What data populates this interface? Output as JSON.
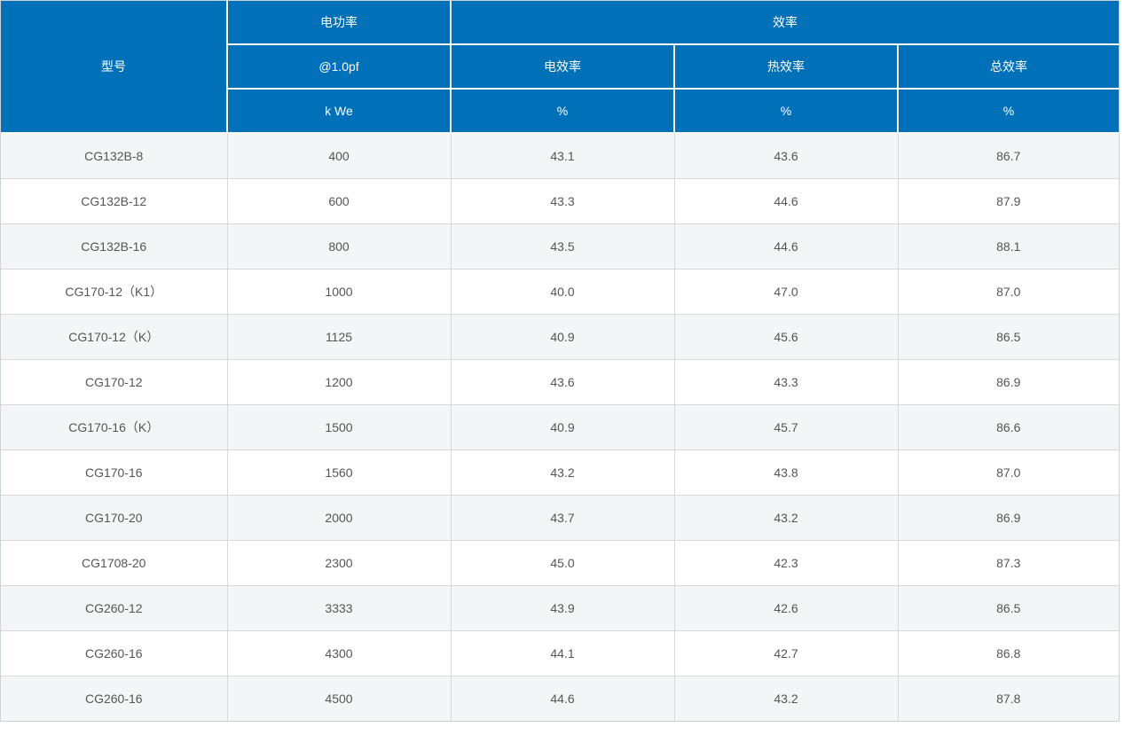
{
  "table": {
    "header": {
      "model": "型号",
      "power_group": "电功率",
      "power_sub": "@1.0pf",
      "power_unit": "k We",
      "efficiency_group": "效率",
      "elec_eff": "电效率",
      "thermal_eff": "热效率",
      "total_eff": "总效率",
      "unit_percent": "%"
    },
    "rows": [
      {
        "model": "CG132B-8",
        "power": "400",
        "elec": "43.1",
        "thermal": "43.6",
        "total": "86.7"
      },
      {
        "model": "CG132B-12",
        "power": "600",
        "elec": "43.3",
        "thermal": "44.6",
        "total": "87.9"
      },
      {
        "model": "CG132B-16",
        "power": "800",
        "elec": "43.5",
        "thermal": "44.6",
        "total": "88.1"
      },
      {
        "model": "CG170-12（K1）",
        "power": "1000",
        "elec": "40.0",
        "thermal": "47.0",
        "total": "87.0"
      },
      {
        "model": "CG170-12（K）",
        "power": "1125",
        "elec": "40.9",
        "thermal": "45.6",
        "total": "86.5"
      },
      {
        "model": "CG170-12",
        "power": "1200",
        "elec": "43.6",
        "thermal": "43.3",
        "total": "86.9"
      },
      {
        "model": "CG170-16（K）",
        "power": "1500",
        "elec": "40.9",
        "thermal": "45.7",
        "total": "86.6"
      },
      {
        "model": "CG170-16",
        "power": "1560",
        "elec": "43.2",
        "thermal": "43.8",
        "total": "87.0"
      },
      {
        "model": "CG170-20",
        "power": "2000",
        "elec": "43.7",
        "thermal": "43.2",
        "total": "86.9"
      },
      {
        "model": "CG1708-20",
        "power": "2300",
        "elec": "45.0",
        "thermal": "42.3",
        "total": "87.3"
      },
      {
        "model": "CG260-12",
        "power": "3333",
        "elec": "43.9",
        "thermal": "42.6",
        "total": "86.5"
      },
      {
        "model": "CG260-16",
        "power": "4300",
        "elec": "44.1",
        "thermal": "42.7",
        "total": "86.8"
      },
      {
        "model": "CG260-16",
        "power": "4500",
        "elec": "44.6",
        "thermal": "43.2",
        "total": "87.8"
      }
    ]
  },
  "colors": {
    "header_bg": "#0071b9",
    "header_text": "#ffffff",
    "stripe_bg": "#f4f5f6",
    "row_bg": "#ffffff",
    "border": "#d8d8d8",
    "data_text": "#555555"
  }
}
